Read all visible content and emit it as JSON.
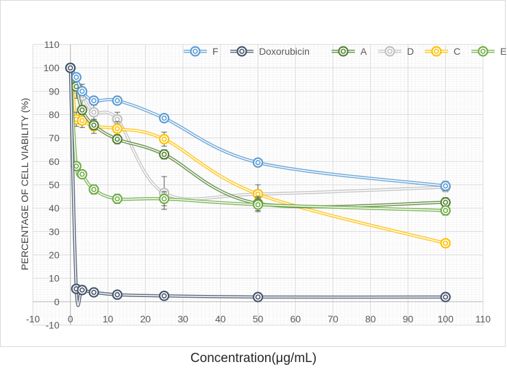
{
  "chart_data": {
    "type": "line",
    "title": "",
    "xlabel": "Concentration(μg/mL)",
    "ylabel": "PERCENTAGE OF CELL VIABILITY (%)",
    "xlim": [
      -10,
      110
    ],
    "ylim": [
      -10,
      110
    ],
    "x_ticks": [
      "-10",
      "0",
      "10",
      "20",
      "30",
      "40",
      "50",
      "60",
      "70",
      "80",
      "90",
      "100",
      "110"
    ],
    "y_ticks": [
      "-10",
      "0",
      "10",
      "20",
      "30",
      "40",
      "50",
      "60",
      "70",
      "80",
      "90",
      "100",
      "110"
    ],
    "grid": true,
    "legend_position": "top",
    "x": [
      0,
      1.5625,
      3.125,
      6.25,
      12.5,
      25,
      50,
      100
    ],
    "series": [
      {
        "name": "F",
        "color": "#5b9bd5",
        "values": [
          100,
          96,
          90,
          86,
          86,
          78.5,
          59.5,
          49.5
        ],
        "errors": [
          1,
          1.5,
          1.5,
          1.5,
          1.5,
          1.5,
          1.5,
          2
        ]
      },
      {
        "name": "Doxorubicin",
        "color": "#44546a",
        "values": [
          100,
          5.5,
          5,
          4,
          3,
          2.5,
          2,
          2
        ],
        "errors": [
          1,
          1,
          1,
          1,
          1,
          1,
          1,
          1
        ]
      },
      {
        "name": "A",
        "color": "#548235",
        "values": [
          100,
          92,
          82,
          75.5,
          69.5,
          63,
          42,
          42.5
        ],
        "errors": [
          1,
          2,
          2,
          2,
          2,
          2,
          3,
          2
        ]
      },
      {
        "name": "D",
        "color": "#bfbfbf",
        "values": [
          100,
          91,
          88,
          81,
          78,
          46.5,
          46,
          49
        ],
        "errors": [
          1,
          4,
          5,
          3,
          3,
          7,
          4,
          2
        ]
      },
      {
        "name": "C",
        "color": "#ffc000",
        "values": [
          100,
          78,
          77.5,
          75,
          74,
          69.5,
          46,
          25
        ],
        "errors": [
          1,
          3,
          3,
          3,
          3,
          3,
          4,
          1
        ]
      },
      {
        "name": "E",
        "color": "#70ad47",
        "values": [
          100,
          58,
          54.5,
          48,
          44,
          44,
          41.5,
          39
        ],
        "errors": [
          1,
          1.5,
          1.5,
          2,
          2,
          3,
          3,
          2
        ]
      }
    ]
  }
}
